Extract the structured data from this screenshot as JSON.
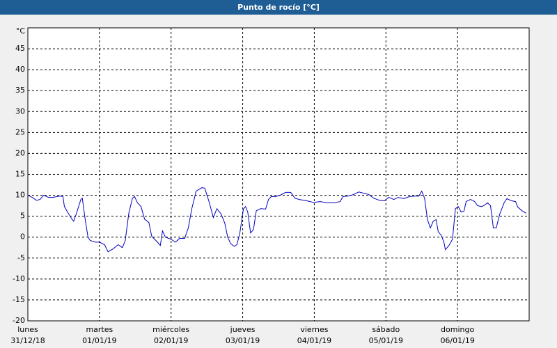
{
  "chart_data": {
    "type": "line",
    "title": "Punto de rocío [°C]",
    "y_unit": "°C",
    "xlim": [
      0,
      7
    ],
    "xticks": [
      {
        "value": 0,
        "label": "lunes",
        "date": "31/12/18"
      },
      {
        "value": 1,
        "label": "martes",
        "date": "01/01/19"
      },
      {
        "value": 2,
        "label": "miércoles",
        "date": "02/01/19"
      },
      {
        "value": 3,
        "label": "jueves",
        "date": "03/01/19"
      },
      {
        "value": 4,
        "label": "viernes",
        "date": "04/01/19"
      },
      {
        "value": 5,
        "label": "sábado",
        "date": "05/01/19"
      },
      {
        "value": 6,
        "label": "domingo",
        "date": "06/01/19"
      }
    ],
    "ylim": [
      -20,
      50
    ],
    "yticks": [
      -20,
      -15,
      -10,
      -5,
      0,
      5,
      10,
      15,
      20,
      25,
      30,
      35,
      40,
      45
    ],
    "grid": true,
    "x": [
      0,
      0.06,
      0.12,
      0.17,
      0.22,
      0.29,
      0.35,
      0.44,
      0.49,
      0.51,
      0.56,
      0.62,
      0.64,
      0.68,
      0.74,
      0.76,
      0.8,
      0.84,
      0.87,
      0.94,
      1.0,
      1.07,
      1.12,
      1.19,
      1.26,
      1.32,
      1.36,
      1.41,
      1.46,
      1.49,
      1.53,
      1.58,
      1.63,
      1.69,
      1.73,
      1.81,
      1.85,
      1.88,
      1.92,
      2.0,
      2.06,
      2.12,
      2.19,
      2.24,
      2.29,
      2.35,
      2.43,
      2.47,
      2.53,
      2.59,
      2.64,
      2.7,
      2.75,
      2.79,
      2.83,
      2.88,
      2.92,
      2.96,
      3.01,
      3.04,
      3.07,
      3.11,
      3.15,
      3.19,
      3.25,
      3.32,
      3.36,
      3.4,
      3.46,
      3.52,
      3.6,
      3.67,
      3.73,
      3.79,
      3.89,
      3.99,
      4.08,
      4.18,
      4.28,
      4.36,
      4.4,
      4.47,
      4.55,
      4.62,
      4.69,
      4.76,
      4.83,
      4.91,
      4.98,
      5.04,
      5.11,
      5.17,
      5.25,
      5.33,
      5.41,
      5.46,
      5.5,
      5.54,
      5.58,
      5.62,
      5.66,
      5.7,
      5.73,
      5.77,
      5.81,
      5.83,
      5.88,
      5.93,
      5.97,
      6.01,
      6.05,
      6.09,
      6.12,
      6.18,
      6.24,
      6.28,
      6.34,
      6.38,
      6.42,
      6.46,
      6.5,
      6.54,
      6.59,
      6.65,
      6.69,
      6.75,
      6.81,
      6.84,
      6.9,
      6.96
    ],
    "series": [
      {
        "color": "#0000c0",
        "values": [
          10,
          9.5,
          8.8,
          9,
          10,
          9.5,
          9.5,
          9.8,
          9.7,
          7.3,
          5.8,
          4.2,
          3.8,
          5.7,
          9,
          9.3,
          4.3,
          0,
          -0.8,
          -1.2,
          -1.2,
          -1.8,
          -3.5,
          -2.8,
          -1.8,
          -2.5,
          -0.8,
          5.7,
          9.3,
          9.7,
          8.2,
          7.3,
          4.3,
          3.5,
          0.2,
          -1.2,
          -2,
          1.5,
          0,
          -0.5,
          -1.2,
          -0.3,
          -0.3,
          2.2,
          6.8,
          11,
          11.8,
          11.7,
          8.5,
          4.7,
          6.8,
          5.5,
          3.3,
          0,
          -1.5,
          -2.2,
          -1.8,
          1,
          6.7,
          7.3,
          6,
          1,
          1.8,
          6.3,
          6.8,
          6.7,
          9,
          9.7,
          9.7,
          10,
          10.7,
          10.7,
          9.3,
          9,
          8.7,
          8.3,
          8.5,
          8.2,
          8.2,
          8.5,
          9.7,
          9.8,
          10.2,
          10.8,
          10.5,
          10.2,
          9.3,
          8.8,
          8.7,
          9.5,
          9,
          9.5,
          9.2,
          9.7,
          9.8,
          9.8,
          11,
          9.3,
          4.2,
          2.2,
          3.8,
          4.2,
          1.3,
          0.5,
          -1.2,
          -3,
          -2,
          -0.5,
          6.8,
          7.3,
          6,
          6.2,
          8.5,
          9,
          8.5,
          7.5,
          7.3,
          7.7,
          8.2,
          7.5,
          2.2,
          2.2,
          5.5,
          8.2,
          9.2,
          8.7,
          8.5,
          7.2,
          6.3,
          5.7
        ]
      }
    ]
  }
}
